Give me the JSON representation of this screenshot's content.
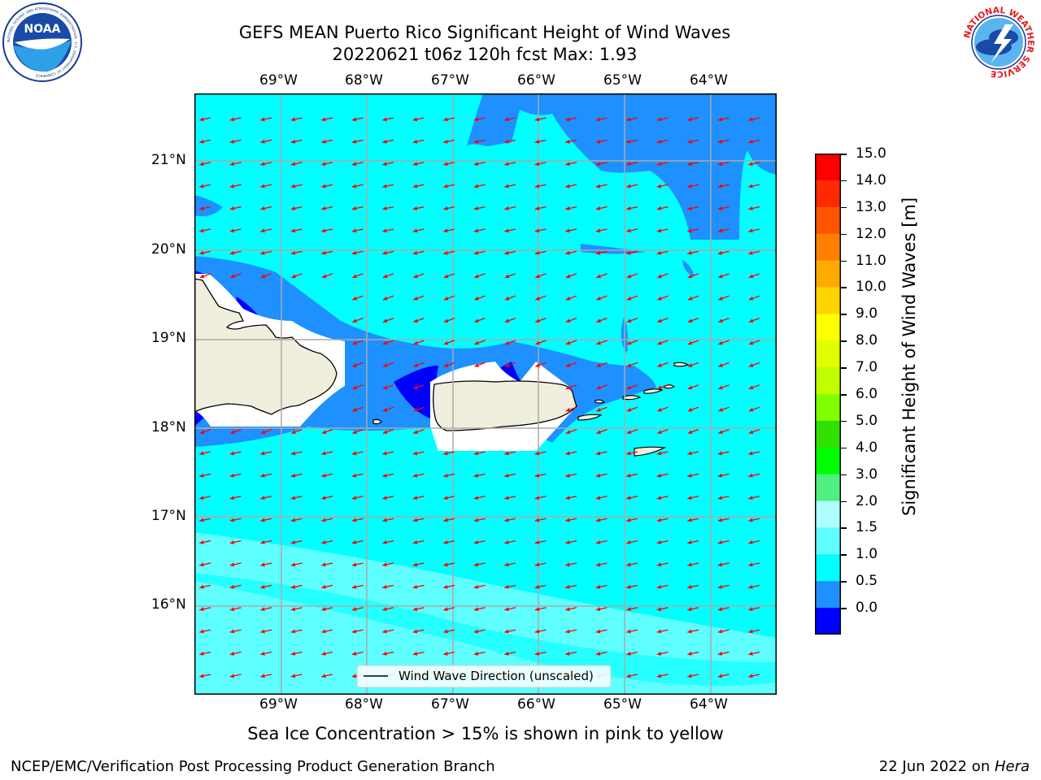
{
  "header": {
    "title_line1": "GEFS MEAN Puerto Rico Significant Height of Wind Waves",
    "title_line2": "20220621 t06z 120h fcst   Max: 1.93"
  },
  "logos": {
    "left": {
      "text": "NOAA",
      "ring_text": "NATIONAL OCEANIC AND ATMOSPHERIC ADMINISTRATION · U.S. DEPARTMENT OF COMMERCE"
    },
    "right": {
      "ring_text": "NATIONAL WEATHER SERVICE"
    }
  },
  "map": {
    "lon_labels": [
      "69°W",
      "68°W",
      "67°W",
      "66°W",
      "65°W",
      "64°W"
    ],
    "lat_labels": [
      "21°N",
      "20°N",
      "19°N",
      "18°N",
      "17°N",
      "16°N"
    ],
    "legend_label": "Wind Wave Direction (unscaled)",
    "colors": {
      "ocean_light": "#00ffff",
      "ocean_medium": "#1e90ff",
      "ocean_dark": "#0000ff",
      "ocean_pale": "#5fffff",
      "land": "#f0eedc",
      "mask": "#ffffff",
      "arrow": "#ff0000"
    }
  },
  "colorbar": {
    "title": "Significant Height of Wind Waves [m]",
    "tick_labels": [
      "15.0",
      "14.0",
      "13.0",
      "12.0",
      "11.0",
      "10.0",
      "9.0",
      "8.0",
      "7.0",
      "6.0",
      "5.0",
      "4.0",
      "3.0",
      "2.0",
      "1.5",
      "1.0",
      "0.5",
      "0.0"
    ],
    "colors_top_to_bottom": [
      "#ff0000",
      "#ff2a00",
      "#ff5500",
      "#ff8000",
      "#ffaa00",
      "#ffd400",
      "#ffff00",
      "#e0ff00",
      "#c0ff00",
      "#80ff00",
      "#30e000",
      "#00ff00",
      "#50f080",
      "#b0ffff",
      "#60ffff",
      "#00ffff",
      "#1e90ff",
      "#0000ff"
    ]
  },
  "footer": {
    "note": "Sea Ice Concentration > 15% is shown in pink to yellow",
    "left": "NCEP/EMC/Verification Post Processing Product Generation Branch",
    "right_date": "22 Jun 2022 on ",
    "right_host": "Hera"
  }
}
